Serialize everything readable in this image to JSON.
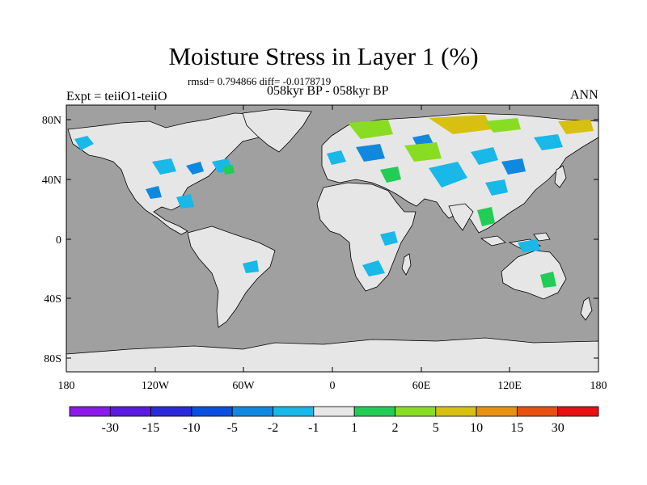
{
  "title": "Moisture Stress in Layer 1 (%)",
  "stats": "rmsd= 0.794866 diff= -0.0178719",
  "period": "058kyr BP - 058kyr BP",
  "left_label": "Expt = teiiO1-teiiO",
  "right_label": "ANN",
  "axes": {
    "y_ticks": [
      "80N",
      "40N",
      "0",
      "40S",
      "80S"
    ],
    "x_ticks": [
      "180",
      "120W",
      "60W",
      "0",
      "60E",
      "120E",
      "180"
    ]
  },
  "colorbar": {
    "colors": [
      "#8a1ae8",
      "#5a1ae0",
      "#2a2ad8",
      "#0a50e0",
      "#1088e0",
      "#18b8e8",
      "#e6e6e6",
      "#22cc55",
      "#88dd22",
      "#d8c010",
      "#e89010",
      "#e85010",
      "#e81010"
    ],
    "labels": [
      "-30",
      "-15",
      "-10",
      "-5",
      "-2",
      "-1",
      "1",
      "2",
      "5",
      "10",
      "15",
      "30"
    ]
  },
  "colors": {
    "ocean": "#a0a0a0",
    "land": "#e6e6e6",
    "coast": "#000000"
  }
}
